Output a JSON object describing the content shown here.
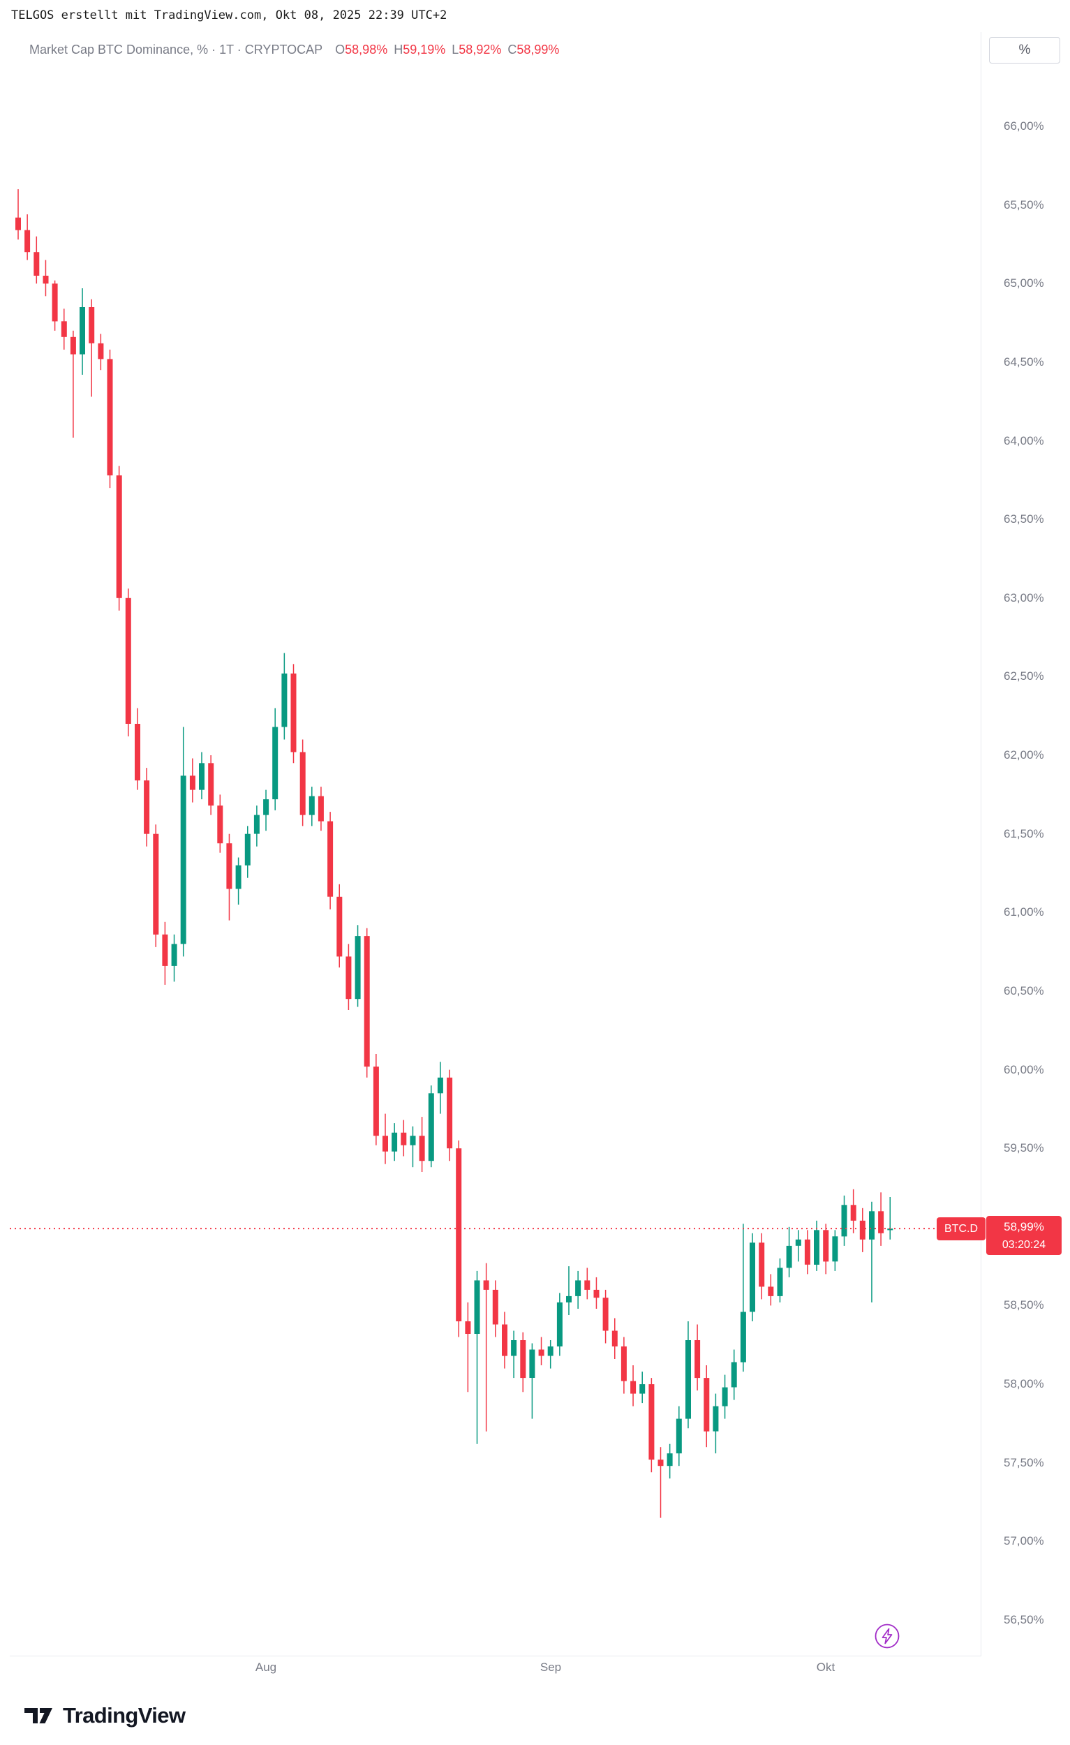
{
  "attribution": "TELGOS erstellt mit TradingView.com, Okt 08, 2025 22:39 UTC+2",
  "header": {
    "symbol_title": "Market Cap BTC Dominance, % · 1T · CRYPTOCAP",
    "ohlc": [
      {
        "label": "O",
        "value": "58,98%"
      },
      {
        "label": "H",
        "value": "59,19%"
      },
      {
        "label": "L",
        "value": "58,92%"
      },
      {
        "label": "C",
        "value": "58,99%"
      }
    ],
    "unit_button_label": "%"
  },
  "price_axis": {
    "tick_labels": [
      "66,00%",
      "65,50%",
      "65,00%",
      "64,50%",
      "64,00%",
      "63,50%",
      "63,00%",
      "62,50%",
      "62,00%",
      "61,50%",
      "61,00%",
      "60,50%",
      "60,00%",
      "59,50%",
      "59,00%",
      "58,50%",
      "58,00%",
      "57,50%",
      "57,00%",
      "56,50%"
    ],
    "tick_values": [
      66.0,
      65.5,
      65.0,
      64.5,
      64.0,
      63.5,
      63.0,
      62.5,
      62.0,
      61.5,
      61.0,
      60.5,
      60.0,
      59.5,
      59.0,
      58.5,
      58.0,
      57.5,
      57.0,
      56.5
    ]
  },
  "price_line": {
    "symbol": "BTC.D",
    "price_label": "58,99%",
    "countdown": "03:20:24",
    "value": 58.99
  },
  "time_axis": {
    "labels": [
      "Aug",
      "Sep",
      "Okt"
    ]
  },
  "branding": {
    "logo_text": "TradingView"
  },
  "colors": {
    "up": "#089981",
    "down": "#F23645",
    "price_line": "#F23645",
    "label_bg": "#F23645",
    "muted_text": "#787B86",
    "bolt": "#A12BC7"
  },
  "chart_data": {
    "type": "candlestick",
    "title": "Market Cap BTC Dominance, % · 1T · CRYPTOCAP",
    "timeframe": "1T (daily)",
    "x_start_date": "2025-07-05",
    "x_end_date": "2025-10-08",
    "xticks": [
      "Aug",
      "Sep",
      "Okt"
    ],
    "month_ticks": [
      {
        "label": "Aug",
        "index": 27
      },
      {
        "label": "Sep",
        "index": 58
      },
      {
        "label": "Okt",
        "index": 88
      }
    ],
    "ylim": [
      56.3,
      66.6
    ],
    "y_ticks": [
      56.5,
      57.0,
      57.5,
      58.0,
      58.5,
      59.0,
      59.5,
      60.0,
      60.5,
      61.0,
      61.5,
      62.0,
      62.5,
      63.0,
      63.5,
      64.0,
      64.5,
      65.0,
      65.5,
      66.0
    ],
    "grid": false,
    "last_price": 58.99,
    "ohlc_format": [
      "open",
      "high",
      "low",
      "close"
    ],
    "ohlc": [
      [
        65.42,
        65.6,
        65.28,
        65.34
      ],
      [
        65.34,
        65.44,
        65.15,
        65.2
      ],
      [
        65.2,
        65.3,
        65.0,
        65.05
      ],
      [
        65.05,
        65.15,
        64.92,
        65.0
      ],
      [
        65.0,
        65.02,
        64.7,
        64.76
      ],
      [
        64.76,
        64.84,
        64.58,
        64.66
      ],
      [
        64.66,
        64.7,
        64.02,
        64.55
      ],
      [
        64.55,
        64.97,
        64.42,
        64.85
      ],
      [
        64.85,
        64.9,
        64.28,
        64.62
      ],
      [
        64.62,
        64.68,
        64.45,
        64.52
      ],
      [
        64.52,
        64.58,
        63.7,
        63.78
      ],
      [
        63.78,
        63.84,
        62.92,
        63.0
      ],
      [
        63.0,
        63.06,
        62.12,
        62.2
      ],
      [
        62.2,
        62.3,
        61.78,
        61.84
      ],
      [
        61.84,
        61.92,
        61.42,
        61.5
      ],
      [
        61.5,
        61.56,
        60.78,
        60.86
      ],
      [
        60.86,
        60.94,
        60.54,
        60.66
      ],
      [
        60.66,
        60.86,
        60.56,
        60.8
      ],
      [
        60.8,
        62.18,
        60.72,
        61.87
      ],
      [
        61.87,
        61.98,
        61.7,
        61.78
      ],
      [
        61.78,
        62.02,
        61.72,
        61.95
      ],
      [
        61.95,
        62.0,
        61.62,
        61.68
      ],
      [
        61.68,
        61.75,
        61.38,
        61.44
      ],
      [
        61.44,
        61.5,
        60.95,
        61.15
      ],
      [
        61.15,
        61.35,
        61.05,
        61.3
      ],
      [
        61.3,
        61.55,
        61.22,
        61.5
      ],
      [
        61.5,
        61.68,
        61.42,
        61.62
      ],
      [
        61.62,
        61.78,
        61.52,
        61.72
      ],
      [
        61.72,
        62.3,
        61.65,
        62.18
      ],
      [
        62.18,
        62.65,
        62.1,
        62.52
      ],
      [
        62.52,
        62.58,
        61.95,
        62.02
      ],
      [
        62.02,
        62.1,
        61.55,
        61.62
      ],
      [
        61.62,
        61.8,
        61.55,
        61.74
      ],
      [
        61.74,
        61.8,
        61.52,
        61.58
      ],
      [
        61.58,
        61.64,
        61.02,
        61.1
      ],
      [
        61.1,
        61.18,
        60.65,
        60.72
      ],
      [
        60.72,
        60.8,
        60.38,
        60.45
      ],
      [
        60.45,
        60.92,
        60.4,
        60.85
      ],
      [
        60.85,
        60.9,
        59.95,
        60.02
      ],
      [
        60.02,
        60.1,
        59.52,
        59.58
      ],
      [
        59.58,
        59.72,
        59.4,
        59.48
      ],
      [
        59.48,
        59.66,
        59.42,
        59.6
      ],
      [
        59.6,
        59.68,
        59.45,
        59.52
      ],
      [
        59.52,
        59.64,
        59.38,
        59.58
      ],
      [
        59.58,
        59.7,
        59.35,
        59.42
      ],
      [
        59.42,
        59.9,
        59.38,
        59.85
      ],
      [
        59.85,
        60.05,
        59.72,
        59.95
      ],
      [
        59.95,
        60.0,
        59.42,
        59.5
      ],
      [
        59.5,
        59.55,
        58.3,
        58.4
      ],
      [
        58.4,
        58.52,
        57.95,
        58.32
      ],
      [
        58.32,
        58.72,
        57.62,
        58.66
      ],
      [
        58.66,
        58.77,
        57.7,
        58.6
      ],
      [
        58.6,
        58.66,
        58.3,
        58.38
      ],
      [
        58.38,
        58.46,
        58.1,
        58.18
      ],
      [
        58.18,
        58.34,
        58.04,
        58.28
      ],
      [
        58.28,
        58.33,
        57.95,
        58.04
      ],
      [
        58.04,
        58.26,
        57.78,
        58.22
      ],
      [
        58.22,
        58.3,
        58.12,
        58.18
      ],
      [
        58.18,
        58.28,
        58.1,
        58.24
      ],
      [
        58.24,
        58.58,
        58.18,
        58.52
      ],
      [
        58.52,
        58.75,
        58.44,
        58.56
      ],
      [
        58.56,
        58.72,
        58.48,
        58.66
      ],
      [
        58.66,
        58.74,
        58.54,
        58.6
      ],
      [
        58.6,
        58.68,
        58.48,
        58.55
      ],
      [
        58.55,
        58.6,
        58.26,
        58.34
      ],
      [
        58.34,
        58.42,
        58.16,
        58.24
      ],
      [
        58.24,
        58.3,
        57.94,
        58.02
      ],
      [
        58.02,
        58.12,
        57.86,
        57.94
      ],
      [
        57.94,
        58.08,
        57.88,
        58.0
      ],
      [
        58.0,
        58.04,
        57.44,
        57.52
      ],
      [
        57.52,
        57.6,
        57.15,
        57.48
      ],
      [
        57.48,
        57.62,
        57.4,
        57.56
      ],
      [
        57.56,
        57.86,
        57.48,
        57.78
      ],
      [
        57.78,
        58.4,
        57.72,
        58.28
      ],
      [
        58.28,
        58.38,
        57.96,
        58.04
      ],
      [
        58.04,
        58.12,
        57.6,
        57.7
      ],
      [
        57.7,
        57.94,
        57.56,
        57.86
      ],
      [
        57.86,
        58.06,
        57.78,
        57.98
      ],
      [
        57.98,
        58.22,
        57.9,
        58.14
      ],
      [
        58.14,
        59.02,
        58.08,
        58.46
      ],
      [
        58.46,
        58.96,
        58.4,
        58.9
      ],
      [
        58.9,
        58.96,
        58.54,
        58.62
      ],
      [
        58.62,
        58.7,
        58.5,
        58.56
      ],
      [
        58.56,
        58.8,
        58.52,
        58.74
      ],
      [
        58.74,
        59.0,
        58.68,
        58.88
      ],
      [
        58.88,
        58.98,
        58.78,
        58.92
      ],
      [
        58.92,
        58.98,
        58.7,
        58.76
      ],
      [
        58.76,
        59.04,
        58.72,
        58.98
      ],
      [
        58.98,
        59.02,
        58.7,
        58.78
      ],
      [
        58.78,
        58.98,
        58.72,
        58.94
      ],
      [
        58.94,
        59.2,
        58.88,
        59.14
      ],
      [
        59.14,
        59.24,
        58.96,
        59.04
      ],
      [
        59.04,
        59.12,
        58.84,
        58.92
      ],
      [
        58.92,
        59.16,
        58.52,
        59.1
      ],
      [
        59.1,
        59.22,
        58.88,
        58.96
      ],
      [
        58.98,
        59.19,
        58.92,
        58.99
      ]
    ]
  }
}
